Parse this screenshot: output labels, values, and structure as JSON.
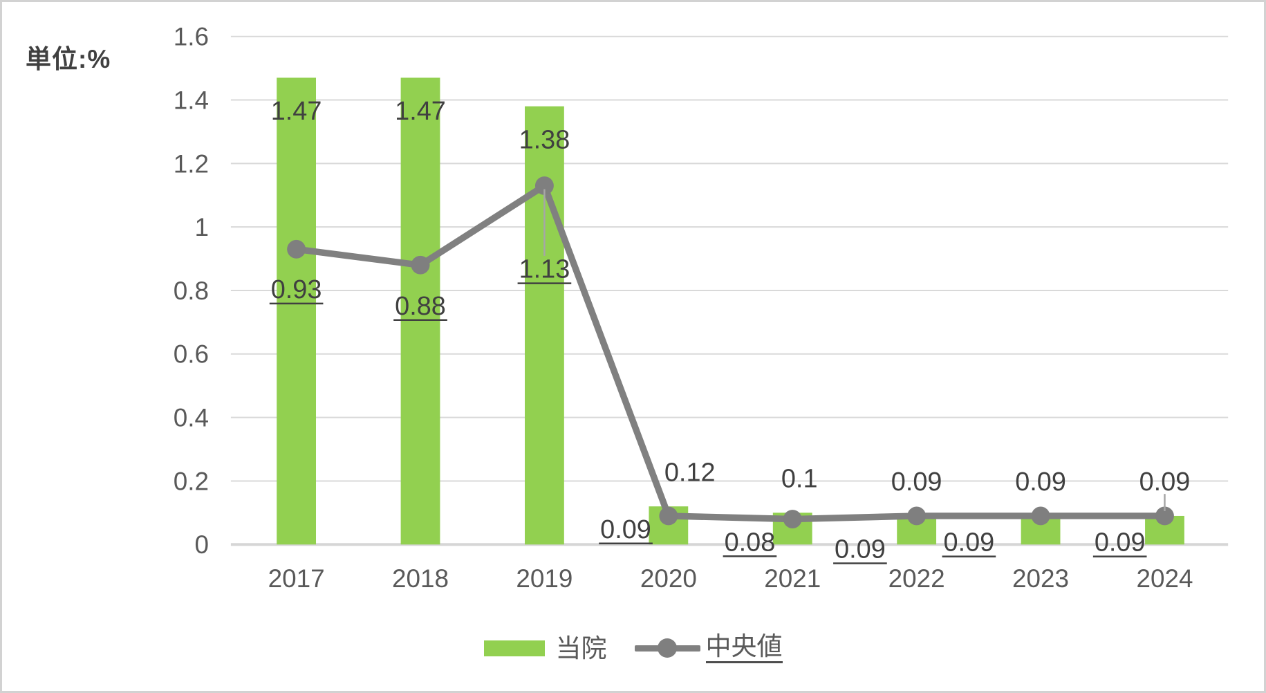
{
  "unit_label": "単位:%",
  "colors": {
    "bar_green": "#92d050",
    "line_gray": "#808080",
    "marker_gray": "#7f7f7f",
    "gridline": "#d9d9d9",
    "axis_line": "#d6d6d6",
    "tick_text": "#595959",
    "data_label_text": "#404040",
    "legend_text": "#595959",
    "leader_line": "#a6a6a6",
    "underline": "#404040",
    "border": "#d2d2d2",
    "background": "#ffffff"
  },
  "legend": {
    "position": "bottom",
    "items": [
      {
        "label": "当院",
        "swatch": "bar"
      },
      {
        "label": "中央値",
        "swatch": "line-marker",
        "underlined": true
      }
    ]
  },
  "chart_data": {
    "type": "combo",
    "title": "",
    "xlabel": "",
    "ylabel": "単位:%",
    "unit_annotation": "単位:%",
    "categories": [
      "2017",
      "2018",
      "2019",
      "2020",
      "2021",
      "2022",
      "2023",
      "2024"
    ],
    "series": [
      {
        "name": "当院",
        "type": "bar",
        "color": "#92d050",
        "values": [
          1.47,
          1.47,
          1.38,
          0.12,
          0.1,
          0.09,
          0.09,
          0.09
        ],
        "labels": [
          "1.47",
          "1.47",
          "1.38",
          "0.12",
          "0.1",
          "0.09",
          "0.09",
          "0.09"
        ],
        "label_placement": [
          {
            "mode": "inside"
          },
          {
            "mode": "inside"
          },
          {
            "mode": "inside"
          },
          {
            "mode": "outside",
            "dx": 31
          },
          {
            "mode": "outside",
            "dx": 10
          },
          {
            "mode": "outside"
          },
          {
            "mode": "outside"
          },
          {
            "mode": "outside",
            "leader": true
          }
        ]
      },
      {
        "name": "中央値",
        "type": "line",
        "marker": "circle",
        "color": "#808080",
        "values": [
          0.93,
          0.88,
          1.13,
          0.09,
          0.08,
          0.09,
          0.09,
          0.09
        ],
        "labels": [
          "0.93",
          "0.88",
          "1.13",
          "0.09",
          "0.08",
          "0.09",
          "0.09",
          "0.09"
        ],
        "labels_underlined": true,
        "label_placement": [
          {
            "dy": 58
          },
          {
            "dy": 59
          },
          {
            "dy": 121,
            "leader": true
          },
          {
            "dx": -62,
            "dy": 19
          },
          {
            "dx": -62,
            "dy": 33
          },
          {
            "dx": -82,
            "dy": 48
          },
          {
            "dx": -104,
            "dy": 38
          },
          {
            "dx": -65,
            "dy": 38
          }
        ]
      }
    ],
    "ylim": [
      0,
      1.6
    ],
    "yticks": [
      0,
      0.2,
      0.4,
      0.6,
      0.8,
      1,
      1.2,
      1.4,
      1.6
    ],
    "ytick_labels": [
      "0",
      "0.2",
      "0.4",
      "0.6",
      "0.8",
      "1",
      "1.2",
      "1.4",
      "1.6"
    ],
    "grid": true,
    "legend_position": "bottom"
  }
}
